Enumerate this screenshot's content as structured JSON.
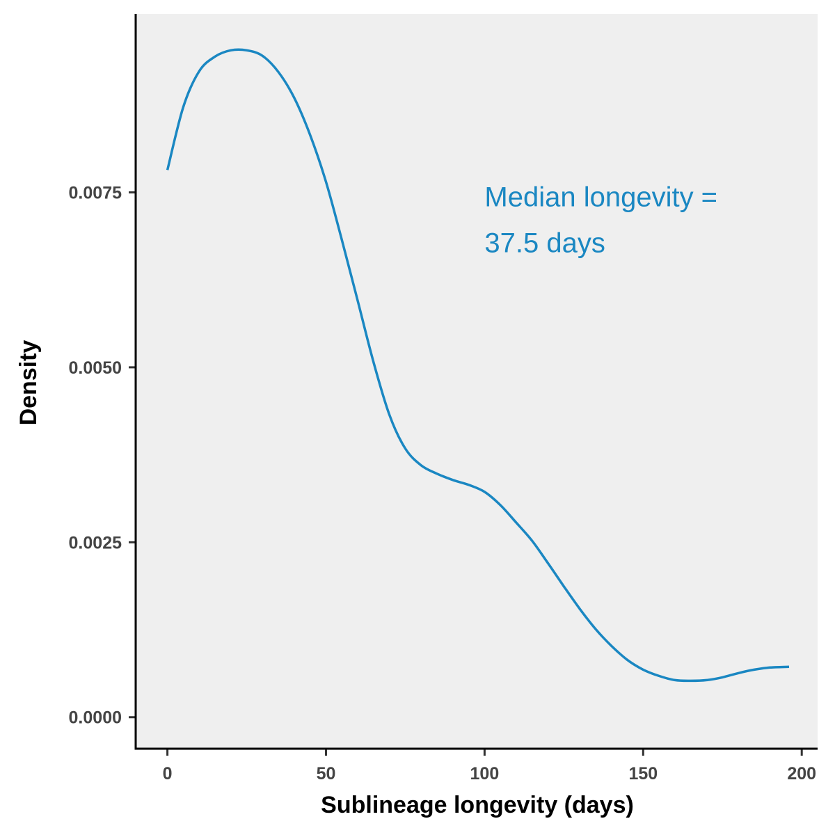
{
  "chart_data": {
    "type": "line",
    "title": "",
    "xlabel": "Sublineage longevity (days)",
    "ylabel": "Density",
    "xlim": [
      -10,
      205
    ],
    "ylim": [
      -0.00045,
      0.01005
    ],
    "x_ticks": [
      0,
      50,
      100,
      150,
      200
    ],
    "x_tick_labels": [
      "0",
      "50",
      "100",
      "150",
      "200"
    ],
    "y_ticks": [
      0.0,
      0.0025,
      0.005,
      0.0075
    ],
    "y_tick_labels": [
      "0.0000",
      "0.0025",
      "0.0050",
      "0.0075"
    ],
    "grid": false,
    "panel_background": "#efefef",
    "series": [
      {
        "color": "#1a87c2",
        "x": [
          0,
          5,
          10,
          15,
          20,
          25,
          30,
          35,
          40,
          45,
          50,
          55,
          60,
          65,
          70,
          75,
          80,
          85,
          90,
          95,
          100,
          105,
          110,
          115,
          120,
          125,
          130,
          135,
          140,
          145,
          150,
          155,
          160,
          165,
          170,
          175,
          180,
          185,
          190,
          196
        ],
        "y": [
          0.00782,
          0.00872,
          0.00923,
          0.00944,
          0.00953,
          0.00953,
          0.00945,
          0.00922,
          0.00885,
          0.00832,
          0.00765,
          0.00682,
          0.00595,
          0.00507,
          0.00432,
          0.00384,
          0.0036,
          0.00348,
          0.00339,
          0.00332,
          0.00322,
          0.00303,
          0.00278,
          0.00252,
          0.0022,
          0.00187,
          0.00155,
          0.00126,
          0.00102,
          0.00082,
          0.00068,
          0.00059,
          0.00053,
          0.00052,
          0.00053,
          0.00057,
          0.00063,
          0.00068,
          0.00071,
          0.00072
        ]
      }
    ],
    "annotations": [
      {
        "lines": [
          "Median longevity =",
          "37.5 days"
        ],
        "x": 100,
        "y": 0.0073,
        "color": "#1a87c2"
      }
    ]
  }
}
